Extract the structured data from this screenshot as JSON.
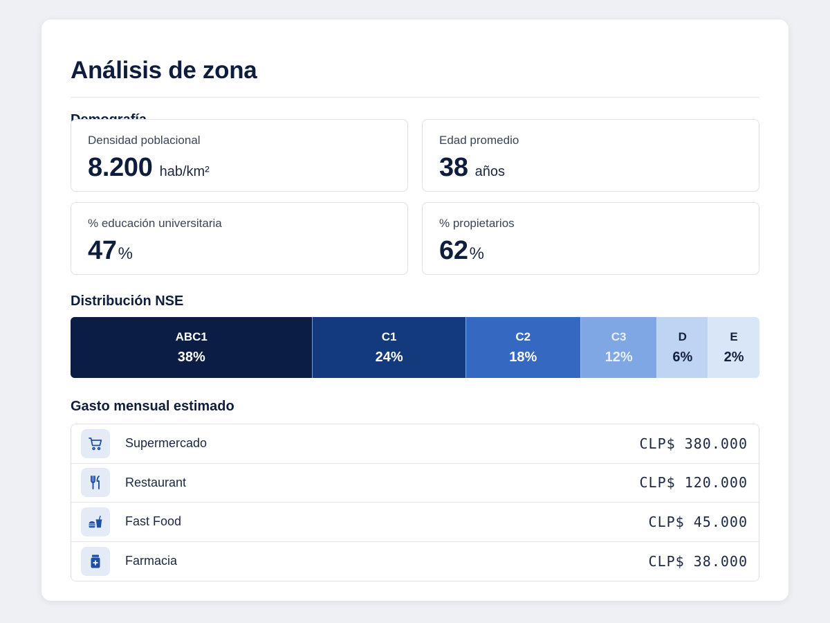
{
  "page": {
    "title": "Análisis de zona"
  },
  "demografia": {
    "heading": "Demografía",
    "metrics": [
      {
        "label": "Densidad poblacional",
        "value": "8.200",
        "unit": "hab/km²"
      },
      {
        "label": "Edad promedio",
        "value": "38",
        "unit": "años"
      },
      {
        "label": "% educación universitaria",
        "value": "47",
        "unit": "%"
      },
      {
        "label": "% propietarios",
        "value": "62",
        "unit": "%"
      }
    ]
  },
  "nse": {
    "heading": "Distribución NSE",
    "segments": [
      {
        "label": "ABC1",
        "value_text": "38%",
        "value": 38,
        "color": "#0b1d45",
        "text_color": "#ffffff"
      },
      {
        "label": "C1",
        "value_text": "24%",
        "value": 24,
        "color": "#123a7d",
        "text_color": "#ffffff"
      },
      {
        "label": "C2",
        "value_text": "18%",
        "value": 18,
        "color": "#3569c1",
        "text_color": "#ffffff"
      },
      {
        "label": "C3",
        "value_text": "12%",
        "value": 12,
        "color": "#7fa7e4",
        "text_color": "#e8effb"
      },
      {
        "label": "D",
        "value_text": "6%",
        "value": 6,
        "color": "#bfd3f3",
        "text_color": "#14213d"
      },
      {
        "label": "E",
        "value_text": "2%",
        "value": 2,
        "color": "#d9e6f8",
        "text_color": "#14213d"
      }
    ]
  },
  "gasto": {
    "heading": "Gasto mensual estimado",
    "rows": [
      {
        "icon": "shopping-cart-icon",
        "name": "Supermercado",
        "amount": "CLP$ 380.000"
      },
      {
        "icon": "fork-knife-icon",
        "name": "Restaurant",
        "amount": "CLP$ 120.000"
      },
      {
        "icon": "burger-drink-icon",
        "name": "Fast Food",
        "amount": "CLP$ 45.000"
      },
      {
        "icon": "medicine-bottle-icon",
        "name": "Farmacia",
        "amount": "CLP$ 38.000"
      }
    ]
  },
  "colors": {
    "accent": "#1f4fa3",
    "icon_bg": "#e4ebf6",
    "title": "#0f1d3d"
  }
}
